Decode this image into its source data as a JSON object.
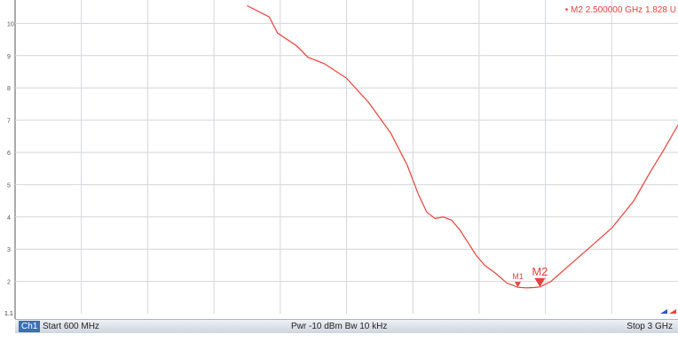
{
  "chart_data": {
    "type": "line",
    "x_unit": "GHz",
    "xlim": [
      0.6,
      3.0
    ],
    "ylim": [
      1,
      11
    ],
    "y_ticks": [
      10,
      9,
      8,
      7,
      6,
      5,
      4,
      3,
      2
    ],
    "y_tick_labels": [
      "10",
      "9",
      "8",
      "7",
      "6",
      "5",
      "4",
      "3",
      "2"
    ],
    "y_bottom_label": "1.1",
    "grid": true,
    "trace_color": "#e8423c",
    "series": [
      {
        "x": [
          1.44,
          1.52,
          1.55,
          1.62,
          1.66,
          1.72,
          1.8,
          1.88,
          1.96,
          2.02,
          2.06,
          2.09,
          2.12,
          2.15,
          2.18,
          2.21,
          2.24,
          2.27,
          2.3,
          2.34,
          2.38,
          2.42,
          2.45,
          2.48,
          2.5,
          2.54,
          2.6,
          2.68,
          2.76,
          2.84,
          2.9,
          2.95,
          3.0
        ],
        "y": [
          10.55,
          10.2,
          9.7,
          9.3,
          8.95,
          8.75,
          8.3,
          7.55,
          6.6,
          5.6,
          4.7,
          4.15,
          3.95,
          4.0,
          3.9,
          3.6,
          3.2,
          2.8,
          2.5,
          2.25,
          1.95,
          1.82,
          1.8,
          1.81,
          1.83,
          2.0,
          2.45,
          3.05,
          3.65,
          4.5,
          5.4,
          6.1,
          6.85
        ]
      }
    ],
    "markers": [
      {
        "label": "M1",
        "x": 2.42,
        "y": 1.82
      },
      {
        "label": "M2",
        "x": 2.5,
        "y": 1.828
      }
    ],
    "marker_readout": "• M2  2.500000  GHz  1.828  U"
  },
  "status_bar": {
    "channel": "Ch1",
    "start": "Start  600 MHz",
    "power_bw": "Pwr  -10 dBm  Bw  10 kHz",
    "stop": "Stop  3 GHz"
  }
}
